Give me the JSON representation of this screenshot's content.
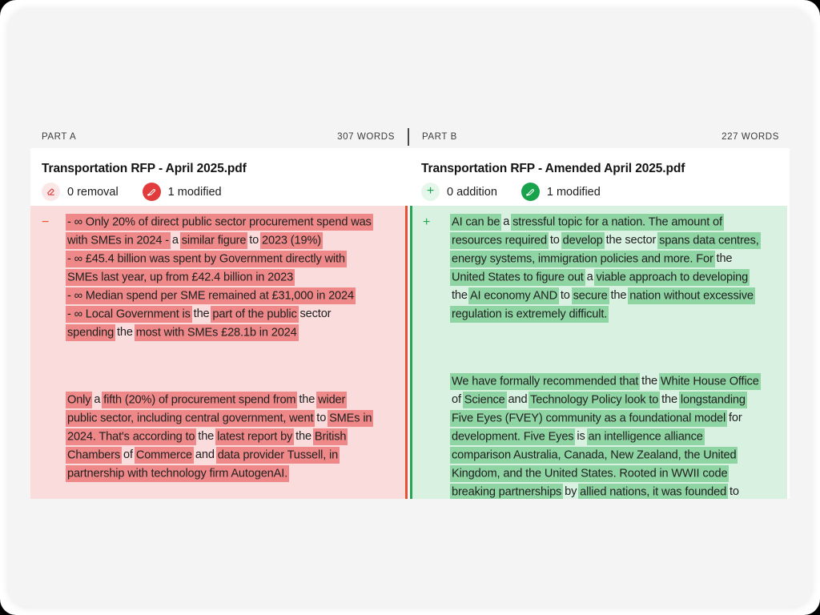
{
  "colors": {
    "page-bg": "#ffffff",
    "card-bg": "#f5f4f5",
    "text": "#202020",
    "removed-panel-bg": "#fbdcdc",
    "removed-highlight": "#ef8989",
    "removed-line": "#e8512d",
    "removed-accent": "#e23b3c",
    "removed-chip-bg": "#fbe7e7",
    "added-panel-bg": "#d9f1e1",
    "added-highlight": "#8fd4a3",
    "added-line": "#28a457",
    "added-accent": "#18a24b",
    "added-chip-bg": "#e5f6eb"
  },
  "panels": [
    {
      "part_label": "PART A",
      "word_count": "307 WORDS",
      "doc_title": "Transportation RFP - April 2025.pdf",
      "gutter_marker": "−",
      "stats": [
        {
          "icon": "eraser-icon",
          "label": "0 removal"
        },
        {
          "icon": "pen-icon",
          "label": "1 modified"
        }
      ],
      "blocks": [
        {
          "lines": [
            [
              {
                "t": "- ∞ Only 20% of direct public sector procurement spend was",
                "h": 1
              }
            ],
            [
              {
                "t": "with SMEs in 2024 -",
                "h": 1
              },
              {
                "t": " a ",
                "h": 0
              },
              {
                "t": "similar figure",
                "h": 1
              },
              {
                "t": " to ",
                "h": 0
              },
              {
                "t": "2023 (19%)",
                "h": 1
              }
            ],
            [
              {
                "t": "- ∞ £45.4 billion was spent by Government directly with",
                "h": 1
              }
            ],
            [
              {
                "t": "SMEs last year, up from £42.4 billion in 2023",
                "h": 1
              }
            ],
            [
              {
                "t": "- ∞ Median spend per SME remained at £31,000 in 2024",
                "h": 1
              }
            ],
            [
              {
                "t": "- ∞ Local Government is",
                "h": 1
              },
              {
                "t": " the ",
                "h": 0
              },
              {
                "t": "part of the public",
                "h": 1
              },
              {
                "t": " sector",
                "h": 0
              }
            ],
            [
              {
                "t": "spending",
                "h": 1
              },
              {
                "t": " the ",
                "h": 0
              },
              {
                "t": "most with SMEs",
                "h": 1
              },
              {
                "t": " ",
                "h": 0
              },
              {
                "t": "£28.1b in 2024",
                "h": 1
              }
            ]
          ]
        },
        {
          "lines": [
            [
              {
                "t": "Only",
                "h": 1
              },
              {
                "t": " a ",
                "h": 0
              },
              {
                "t": "fifth (20%) of procurement",
                "h": 1
              },
              {
                "t": " ",
                "h": 0
              },
              {
                "t": "spend from",
                "h": 1
              },
              {
                "t": " the ",
                "h": 0
              },
              {
                "t": "wider",
                "h": 1
              }
            ],
            [
              {
                "t": "public sector, including central government, went",
                "h": 1
              },
              {
                "t": " to ",
                "h": 0
              },
              {
                "t": "SMEs in",
                "h": 1
              }
            ],
            [
              {
                "t": "2024. That's according to",
                "h": 1
              },
              {
                "t": " the ",
                "h": 0
              },
              {
                "t": "latest report by",
                "h": 1
              },
              {
                "t": " the ",
                "h": 0
              },
              {
                "t": "British",
                "h": 1
              }
            ],
            [
              {
                "t": "Chambers",
                "h": 1
              },
              {
                "t": " of ",
                "h": 0
              },
              {
                "t": "Commerce",
                "h": 1
              },
              {
                "t": " and ",
                "h": 0
              },
              {
                "t": "data provider Tussell, in",
                "h": 1
              }
            ],
            [
              {
                "t": "partnership with technology firm AutogenAI.",
                "h": 1
              }
            ]
          ]
        }
      ]
    },
    {
      "part_label": "PART B",
      "word_count": "227 WORDS",
      "doc_title": "Transportation RFP - Amended April 2025.pdf",
      "gutter_marker": "+",
      "stats": [
        {
          "icon": "plus-icon",
          "label": "0 addition"
        },
        {
          "icon": "pen-icon",
          "label": "1 modified"
        }
      ],
      "blocks": [
        {
          "lines": [
            [
              {
                "t": "AI can be",
                "h": 1
              },
              {
                "t": " a ",
                "h": 0
              },
              {
                "t": "stressful topic for a nation. The amount of",
                "h": 1
              }
            ],
            [
              {
                "t": "resources required",
                "h": 1
              },
              {
                "t": " to ",
                "h": 0
              },
              {
                "t": "develop",
                "h": 1
              },
              {
                "t": " the sector ",
                "h": 0
              },
              {
                "t": "spans data centres,",
                "h": 1
              }
            ],
            [
              {
                "t": "energy systems, immigration policies and more. For",
                "h": 1
              },
              {
                "t": " the",
                "h": 0
              }
            ],
            [
              {
                "t": "United States to figure out",
                "h": 1
              },
              {
                "t": " a ",
                "h": 0
              },
              {
                "t": "viable approach to developing",
                "h": 1
              }
            ],
            [
              {
                "t": "the ",
                "h": 0
              },
              {
                "t": "AI economy AND",
                "h": 1
              },
              {
                "t": " to ",
                "h": 0
              },
              {
                "t": "secure",
                "h": 1
              },
              {
                "t": " the ",
                "h": 0
              },
              {
                "t": "nation without excessive",
                "h": 1
              }
            ],
            [
              {
                "t": "regulation is extremely difficult.",
                "h": 1
              }
            ]
          ]
        },
        {
          "lines": [
            [
              {
                "t": "We have formally recommended that",
                "h": 1
              },
              {
                "t": " the ",
                "h": 0
              },
              {
                "t": "White House Office",
                "h": 1
              }
            ],
            [
              {
                "t": "of ",
                "h": 0
              },
              {
                "t": "Science",
                "h": 1
              },
              {
                "t": " and ",
                "h": 0
              },
              {
                "t": "Technology Policy look to",
                "h": 1
              },
              {
                "t": " the ",
                "h": 0
              },
              {
                "t": "longstanding",
                "h": 1
              }
            ],
            [
              {
                "t": "Five Eyes (FVEY) community as a foundational model",
                "h": 1
              },
              {
                "t": " for",
                "h": 0
              }
            ],
            [
              {
                "t": "development. Five Eyes",
                "h": 1
              },
              {
                "t": " is ",
                "h": 0
              },
              {
                "t": "an intelligence alliance",
                "h": 1
              }
            ],
            [
              {
                "t": "comparison Australia, Canada, New Zealand, the United",
                "h": 1
              }
            ],
            [
              {
                "t": "Kingdom, and the United States. Rooted in WWII code",
                "h": 1
              }
            ],
            [
              {
                "t": "breaking partnerships",
                "h": 1
              },
              {
                "t": " by ",
                "h": 0
              },
              {
                "t": "allied nations, it was founded",
                "h": 1
              },
              {
                "t": " to",
                "h": 0
              }
            ]
          ]
        }
      ]
    }
  ]
}
